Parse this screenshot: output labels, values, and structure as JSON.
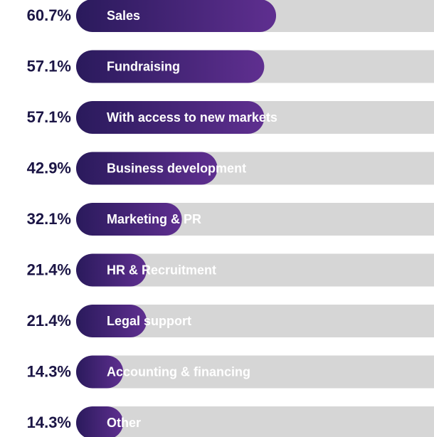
{
  "chart_data": {
    "type": "bar",
    "categories": [
      "Sales",
      "Fundraising",
      "With access to new markets",
      "Business development",
      "Marketing & PR",
      "HR & Recruitment",
      "Legal support",
      "Accounting & financing",
      "Other"
    ],
    "values": [
      60.7,
      57.1,
      57.1,
      42.9,
      32.1,
      21.4,
      21.4,
      14.3,
      14.3
    ],
    "value_labels": [
      "60.7%",
      "57.1%",
      "57.1%",
      "42.9%",
      "32.1%",
      "21.4%",
      "21.4%",
      "14.3%",
      "14.3%"
    ],
    "xlim": [
      0,
      100
    ],
    "gradient_colors": [
      "#2a1a5c",
      "#5f2f90"
    ],
    "track_color": "#d6d6d6"
  }
}
